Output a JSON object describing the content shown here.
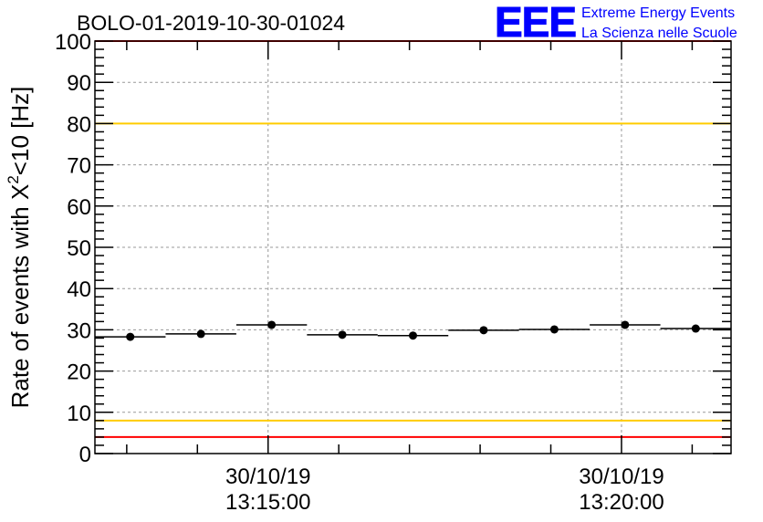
{
  "chart_data": {
    "type": "scatter",
    "title": "BOLO-01-2019-10-30-01024",
    "xlabel": "",
    "ylabel_prefix": "Rate of events with X",
    "ylabel_sup": "2",
    "ylabel_suffix": "<10 [Hz]",
    "ylim": [
      0,
      100
    ],
    "y_ticks": [
      "0",
      "10",
      "20",
      "30",
      "40",
      "50",
      "60",
      "70",
      "80",
      "90",
      "100"
    ],
    "x_ticks": [
      {
        "date": "30/10/19",
        "time": "13:15:00",
        "minute": 15.0
      },
      {
        "date": "30/10/19",
        "time": "13:20:00",
        "minute": 20.0
      }
    ],
    "xlim_minutes": [
      12.55,
      21.55
    ],
    "bin_width_minutes": 1.0,
    "points": [
      {
        "x": 13.05,
        "y": 28.3
      },
      {
        "x": 14.05,
        "y": 29.0
      },
      {
        "x": 15.05,
        "y": 31.2
      },
      {
        "x": 16.05,
        "y": 28.8
      },
      {
        "x": 17.05,
        "y": 28.6
      },
      {
        "x": 18.05,
        "y": 29.9
      },
      {
        "x": 19.05,
        "y": 30.1
      },
      {
        "x": 20.05,
        "y": 31.2
      },
      {
        "x": 21.05,
        "y": 30.3
      }
    ],
    "reference_lines": [
      {
        "y": 100,
        "color": "#ff0000"
      },
      {
        "y": 80,
        "color": "#ffcc00"
      },
      {
        "y": 8,
        "color": "#ffcc00"
      },
      {
        "y": 4,
        "color": "#ff0000"
      }
    ],
    "grid": true,
    "marker_color": "#000000"
  },
  "logo": {
    "letters": "EEE",
    "line1": "Extreme Energy Events",
    "line2": "La Scienza nelle Scuole",
    "color": "#0000ff"
  }
}
